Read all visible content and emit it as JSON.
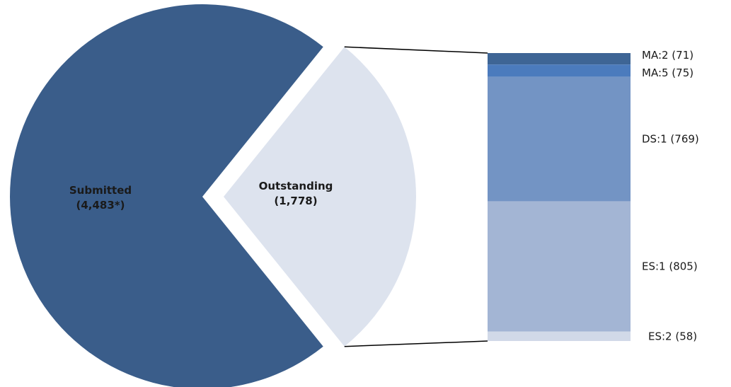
{
  "chart_data": {
    "type": "pie",
    "subtype": "pie-of-bar",
    "slices": [
      {
        "label": "Submitted",
        "value_label": "(4,483*)",
        "value": 4483,
        "color": "#3a5d8a"
      },
      {
        "label": "Outstanding",
        "value_label": "(1,778)",
        "value": 1778,
        "color": "#dde3ee",
        "exploded": true
      }
    ],
    "breakdown": {
      "of": "Outstanding",
      "segments": [
        {
          "label": "MA:2 (71)",
          "value": 71,
          "color": "#3e6595"
        },
        {
          "label": "MA:5 (75)",
          "value": 75,
          "color": "#4b7bbd"
        },
        {
          "label": "DS:1 (769)",
          "value": 769,
          "color": "#7394c4"
        },
        {
          "label": "ES:1 (805)",
          "value": 805,
          "color": "#a3b5d4"
        },
        {
          "label": "ES:2 (58)",
          "value": 58,
          "color": "#d1d9e8"
        }
      ]
    },
    "legend": "none",
    "grid": false
  }
}
